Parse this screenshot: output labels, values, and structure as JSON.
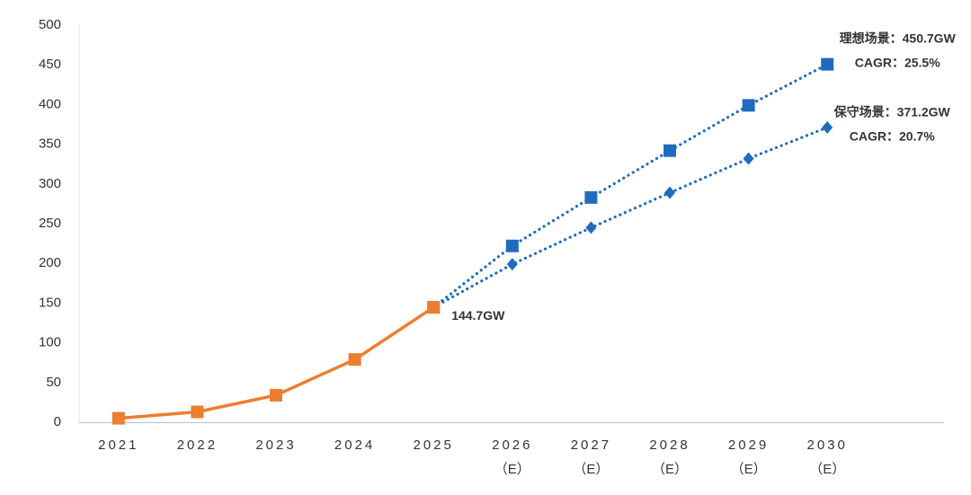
{
  "chart_data": {
    "type": "line",
    "categories": [
      "2021",
      "2022",
      "2023",
      "2024",
      "2025",
      "2026",
      "2027",
      "2028",
      "2029",
      "2030"
    ],
    "category_sublabels": [
      null,
      null,
      null,
      null,
      null,
      "（E）",
      "（E）",
      "（E）",
      "（E）",
      "（E）"
    ],
    "ylim": [
      0,
      500
    ],
    "yticks": [
      0,
      50,
      100,
      150,
      200,
      250,
      300,
      350,
      400,
      450,
      500
    ],
    "series": [
      {
        "color": "#1f6bc0",
        "marker": "square",
        "line_style": "dotted",
        "values": [
          null,
          null,
          null,
          null,
          144.7,
          222,
          283,
          342,
          399,
          450.7
        ],
        "annotation": [
          "理想场景：450.7GW",
          "CAGR：25.5%"
        ]
      },
      {
        "color": "#1f6bc0",
        "marker": "diamond",
        "line_style": "dotted",
        "values": [
          null,
          null,
          null,
          null,
          144.7,
          199,
          245,
          289,
          332,
          371.2
        ],
        "annotation": [
          "保守场景：371.2GW",
          "CAGR：20.7%"
        ]
      },
      {
        "color": "#ed7d31",
        "marker": "square",
        "line_style": "solid",
        "values": [
          5,
          13,
          34,
          79,
          144.7,
          null,
          null,
          null,
          null,
          null
        ],
        "annotation": [
          "144.7GW"
        ]
      }
    ]
  }
}
